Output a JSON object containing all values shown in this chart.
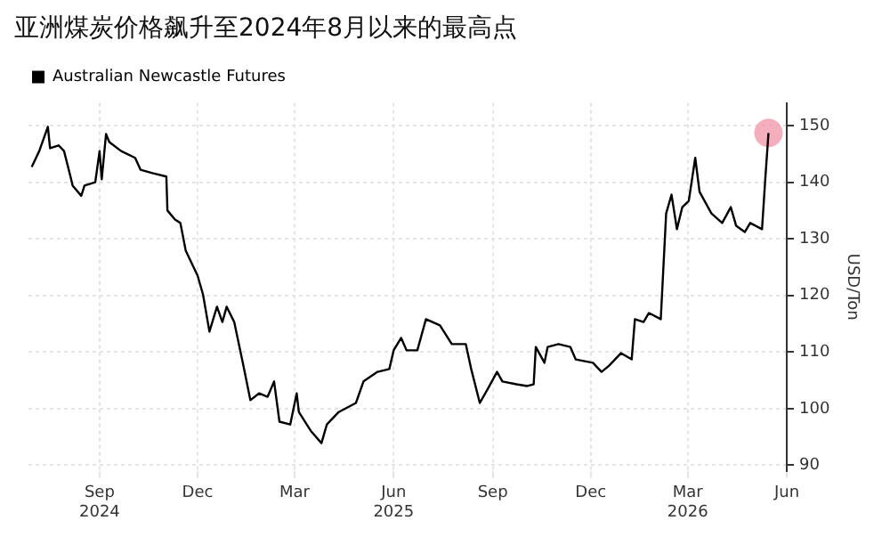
{
  "chart_data": {
    "type": "line",
    "title": "亚洲煤炭价格飙升至2024年8月以来的最高点",
    "ylabel": "USD/Ton",
    "xlim": [
      "2024-06-27",
      "2026-06-01"
    ],
    "ylim": [
      89,
      154
    ],
    "xticks": [
      {
        "value": "2024-09-01",
        "label": "Sep\n2024"
      },
      {
        "value": "2024-12-01",
        "label": "Dec"
      },
      {
        "value": "2025-03-01",
        "label": "Mar"
      },
      {
        "value": "2025-06-01",
        "label": "Jun\n2025"
      },
      {
        "value": "2025-09-01",
        "label": "Sep"
      },
      {
        "value": "2025-12-01",
        "label": "Dec"
      },
      {
        "value": "2026-03-01",
        "label": "Mar\n2026"
      },
      {
        "value": "2026-06-01",
        "label": "Jun"
      }
    ],
    "yticks": [
      90,
      100,
      110,
      120,
      130,
      140,
      150
    ],
    "grid": true,
    "legend": "top left",
    "series": [
      {
        "name": "Australian Newcastle Futures",
        "color": "#000000",
        "x": [
          "2024-06-30",
          "2024-07-07",
          "2024-07-15",
          "2024-07-17",
          "2024-07-25",
          "2024-07-30",
          "2024-08-05",
          "2024-08-07",
          "2024-08-15",
          "2024-08-18",
          "2024-08-28",
          "2024-09-01",
          "2024-09-03",
          "2024-09-07",
          "2024-09-10",
          "2024-09-21",
          "2024-10-04",
          "2024-10-09",
          "2024-10-20",
          "2024-11-02",
          "2024-11-03",
          "2024-11-10",
          "2024-11-15",
          "2024-11-20",
          "2024-12-01",
          "2024-12-06",
          "2024-12-12",
          "2024-12-19",
          "2024-12-24",
          "2024-12-28",
          "2025-01-04",
          "2025-01-12",
          "2025-01-19",
          "2025-01-27",
          "2025-02-04",
          "2025-02-10",
          "2025-02-15",
          "2025-02-25",
          "2025-03-03",
          "2025-03-05",
          "2025-03-16",
          "2025-03-26",
          "2025-03-31",
          "2025-04-11",
          "2025-04-27",
          "2025-05-04",
          "2025-05-17",
          "2025-05-28",
          "2025-06-01",
          "2025-06-08",
          "2025-06-13",
          "2025-06-23",
          "2025-07-01",
          "2025-07-14",
          "2025-07-25",
          "2025-08-07",
          "2025-08-12",
          "2025-08-20",
          "2025-08-28",
          "2025-09-05",
          "2025-09-10",
          "2025-09-23",
          "2025-10-03",
          "2025-10-09",
          "2025-10-11",
          "2025-10-19",
          "2025-10-22",
          "2025-11-01",
          "2025-11-12",
          "2025-11-17",
          "2025-12-03",
          "2025-12-11",
          "2025-12-18",
          "2025-12-29",
          "2026-01-08",
          "2026-01-11",
          "2026-01-19",
          "2026-01-24",
          "2026-02-04",
          "2026-02-09",
          "2026-02-14",
          "2026-02-19",
          "2026-02-24",
          "2026-03-02",
          "2026-03-08",
          "2026-03-12",
          "2026-03-23",
          "2026-04-02",
          "2026-04-10",
          "2026-04-15",
          "2026-04-23",
          "2026-04-28",
          "2026-05-09",
          "2026-05-12",
          "2026-05-15"
        ],
        "values": [
          142.7,
          145.5,
          149.8,
          146,
          146.5,
          145.5,
          141,
          139.4,
          137.6,
          139.4,
          140,
          145.5,
          140.5,
          148.5,
          147.1,
          145.5,
          144.3,
          142.2,
          141.6,
          141,
          135,
          133.4,
          132.8,
          127.9,
          123.5,
          120.2,
          113.6,
          118,
          115.3,
          118,
          115.3,
          108.1,
          101.5,
          102.7,
          102.1,
          104.8,
          97.7,
          97.2,
          102.7,
          99.4,
          96.1,
          93.9,
          97.2,
          99.4,
          101,
          104.8,
          106.5,
          107,
          110.3,
          112.5,
          110.3,
          110.3,
          115.8,
          114.7,
          111.4,
          111.4,
          107,
          101,
          103.7,
          106.5,
          104.8,
          104.3,
          104,
          104.3,
          110.9,
          108.1,
          110.9,
          111.4,
          110.9,
          108.7,
          108.1,
          106.5,
          107.6,
          109.8,
          108.7,
          115.8,
          115.3,
          116.9,
          115.8,
          134.5,
          137.8,
          131.7,
          135.6,
          136.7,
          144.3,
          138.3,
          134.5,
          132.8,
          135.6,
          132.3,
          131.2,
          132.8,
          131.7,
          140.5,
          148.7
        ]
      },
      {
        "type": "scatter",
        "color": "#f29bab",
        "marker": "circle",
        "x": [
          "2026-05-15"
        ],
        "values": [
          148.7
        ]
      }
    ]
  }
}
